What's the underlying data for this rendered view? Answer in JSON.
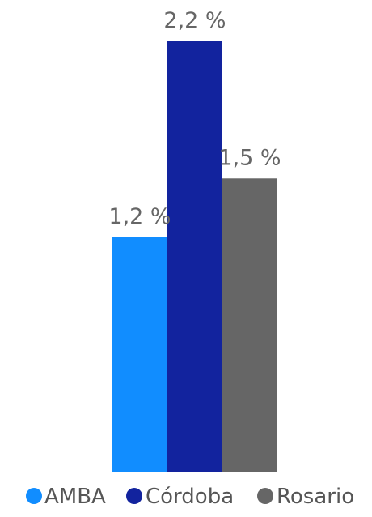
{
  "chart_data": {
    "type": "bar",
    "series": [
      {
        "name": "AMBA",
        "value": 1.2,
        "label": "1,2 %",
        "color": "#118DFF"
      },
      {
        "name": "Córdoba",
        "value": 2.2,
        "label": "2,2 %",
        "color": "#12239E"
      },
      {
        "name": "Rosario",
        "value": 1.5,
        "label": "1,5 %",
        "color": "#666666"
      }
    ],
    "ylim": [
      0,
      2.2
    ],
    "grid": false,
    "legend_position": "bottom"
  }
}
